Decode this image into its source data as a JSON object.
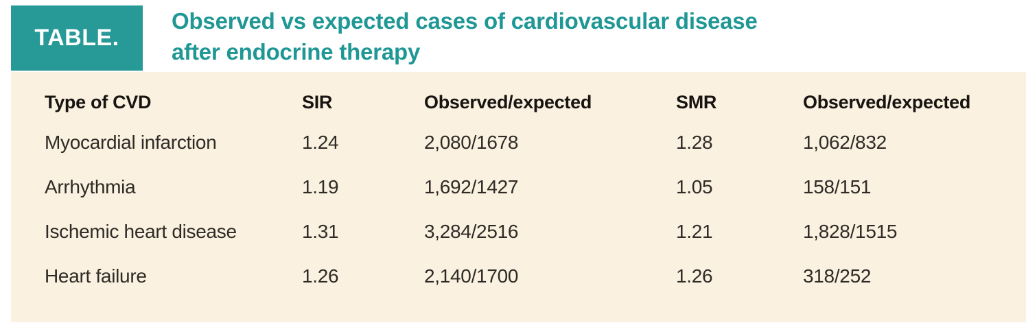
{
  "badge": {
    "label": "TABLE."
  },
  "title": {
    "line1": "Observed vs expected cases of cardiovascular disease",
    "line2": "after endocrine therapy"
  },
  "chart_data": {
    "type": "table",
    "title": "Observed vs expected cases of cardiovascular disease after endocrine therapy",
    "columns": [
      "Type of CVD",
      "SIR",
      "Observed/expected",
      "SMR",
      "Observed/expected"
    ],
    "rows": [
      [
        "Myocardial infarction",
        "1.24",
        "2,080/1678",
        "1.28",
        "1,062/832"
      ],
      [
        "Arrhythmia",
        "1.19",
        "1,692/1427",
        "1.05",
        "158/151"
      ],
      [
        "Ischemic heart disease",
        "1.31",
        "3,284/2516",
        "1.21",
        "1,828/1515"
      ],
      [
        "Heart failure",
        "1.26",
        "2,140/1700",
        "1.26",
        "318/252"
      ]
    ]
  },
  "colors": {
    "accent_teal": "#279a98",
    "title_teal": "#1f9795",
    "panel_cream": "#faf1e0",
    "header_text": "#171411",
    "body_text": "#2e2a25"
  }
}
